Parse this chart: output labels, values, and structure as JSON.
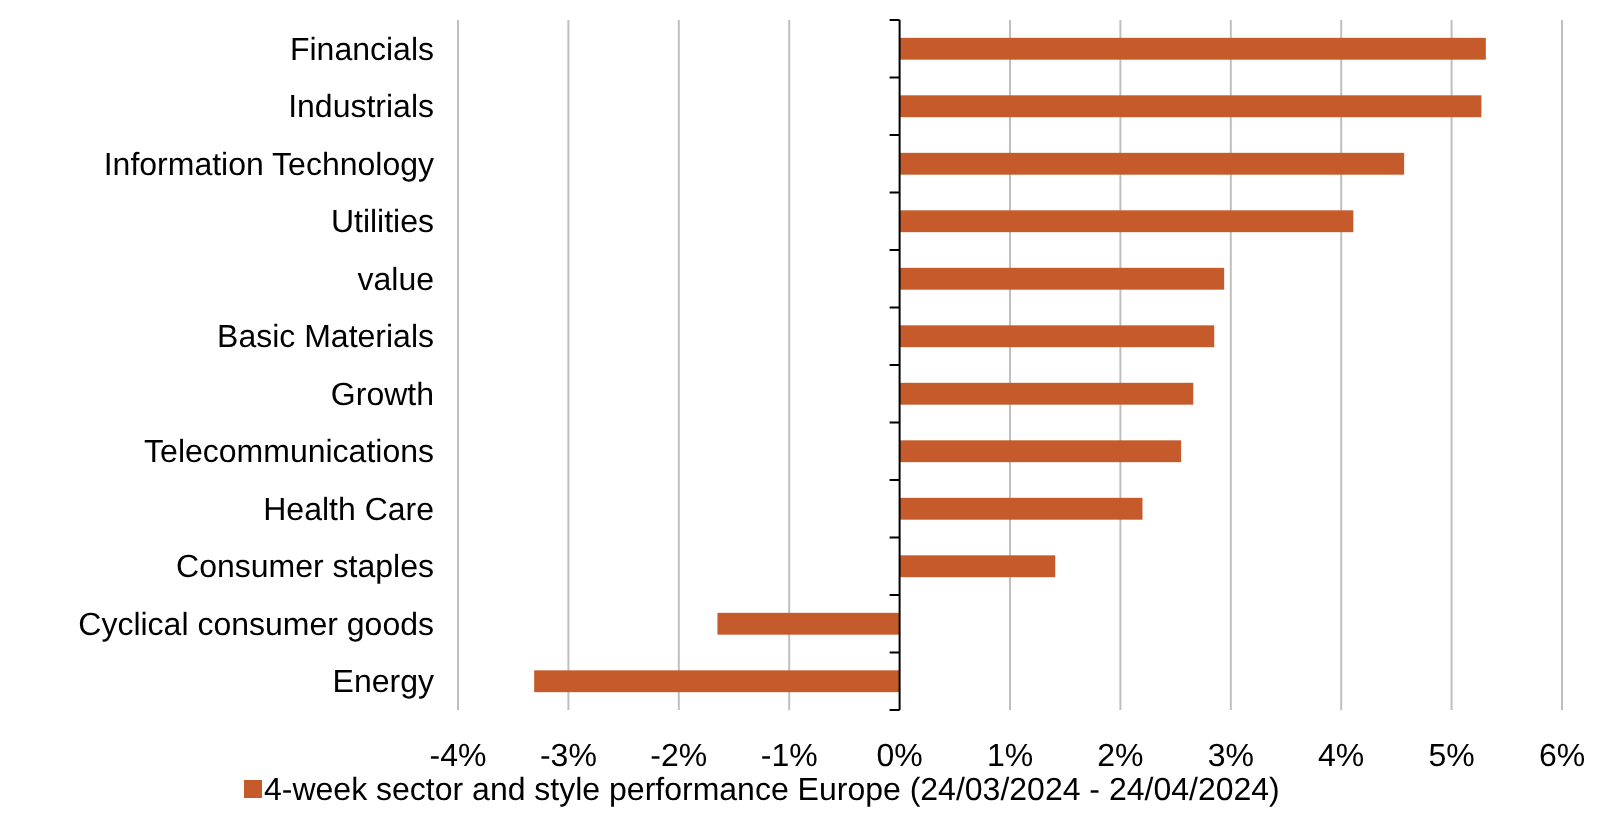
{
  "chart_data": {
    "type": "bar",
    "orientation": "horizontal",
    "categories": [
      "Financials",
      "Industrials",
      "Information Technology",
      "Utilities",
      "value",
      "Basic Materials",
      "Growth",
      "Telecommunications",
      "Health Care",
      "Consumer staples",
      "Cyclical consumer goods",
      "Energy"
    ],
    "series": [
      {
        "name": "4-week sector and style performance Europe (24/03/2024 - 24/04/2024)",
        "color": "#c55a2b",
        "values": [
          5.31,
          5.27,
          4.57,
          4.11,
          2.94,
          2.85,
          2.66,
          2.55,
          2.2,
          1.41,
          -1.65,
          -3.31
        ]
      }
    ],
    "xlim": [
      -4,
      6
    ],
    "xticks": [
      {
        "value": -4,
        "label": "-4%"
      },
      {
        "value": -3,
        "label": "-3%"
      },
      {
        "value": -2,
        "label": "-2%"
      },
      {
        "value": -1,
        "label": "-1%"
      },
      {
        "value": 0,
        "label": "0%"
      },
      {
        "value": 1,
        "label": "1%"
      },
      {
        "value": 2,
        "label": "2%"
      },
      {
        "value": 3,
        "label": "3%"
      },
      {
        "value": 4,
        "label": "4%"
      },
      {
        "value": 5,
        "label": "5%"
      },
      {
        "value": 6,
        "label": "6%"
      }
    ],
    "grid": "x",
    "legend": "bottom"
  }
}
